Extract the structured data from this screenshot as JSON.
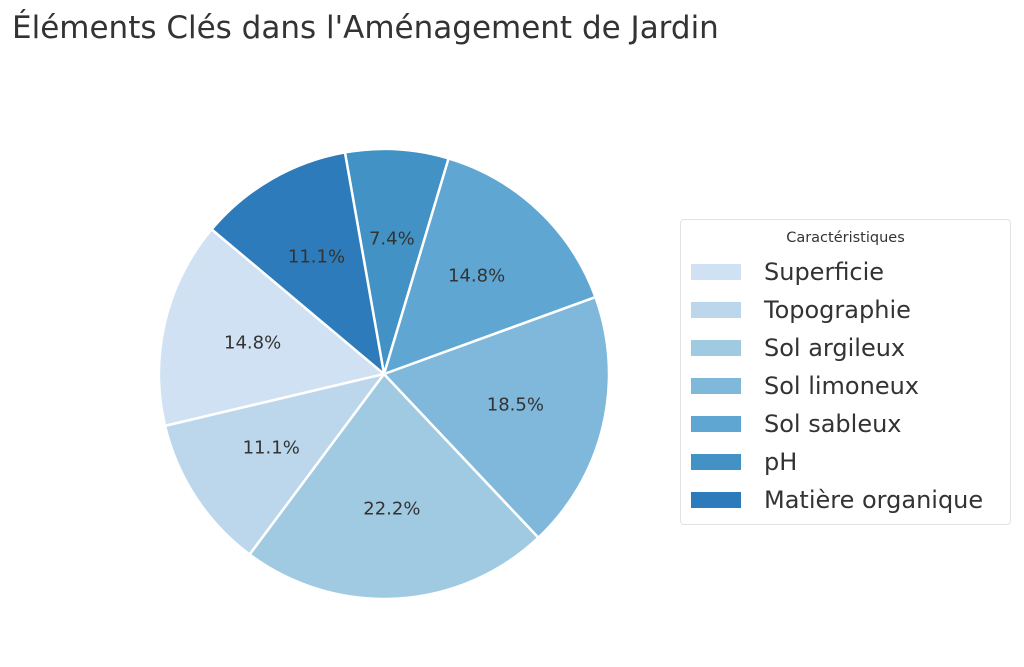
{
  "title": "Éléments Clés dans l'Aménagement de Jardin",
  "legend": {
    "title": "Caractéristiques",
    "items": [
      {
        "label": "Superficie",
        "color": "#cfe1f2"
      },
      {
        "label": "Topographie",
        "color": "#bcd7eb"
      },
      {
        "label": "Sol argileux",
        "color": "#a0cae1"
      },
      {
        "label": "Sol limoneux",
        "color": "#7fb8da"
      },
      {
        "label": "Sol sableux",
        "color": "#60a6d3"
      },
      {
        "label": "pH",
        "color": "#4292c6"
      },
      {
        "label": "Matière organique",
        "color": "#2d7bba"
      }
    ]
  },
  "chart_data": {
    "type": "pie",
    "title": "Éléments Clés dans l'Aménagement de Jardin",
    "legend_title": "Caractéristiques",
    "legend_position": "right",
    "start_angle_deg": 140,
    "direction": "counterclockwise",
    "categories": [
      "Superficie",
      "Topographie",
      "Sol argileux",
      "Sol limoneux",
      "Sol sableux",
      "pH",
      "Matière organique"
    ],
    "values": [
      14.8,
      11.1,
      22.2,
      18.5,
      14.8,
      7.4,
      11.1
    ],
    "labels": [
      "14.8%",
      "11.1%",
      "22.2%",
      "18.5%",
      "14.8%",
      "7.4%",
      "11.1%"
    ],
    "colors": [
      "#cfe1f2",
      "#bcd7eb",
      "#a0cae1",
      "#7fb8da",
      "#60a6d3",
      "#4292c6",
      "#2d7bba"
    ],
    "label_color": "#333333",
    "edge_color": "#ffffff"
  }
}
